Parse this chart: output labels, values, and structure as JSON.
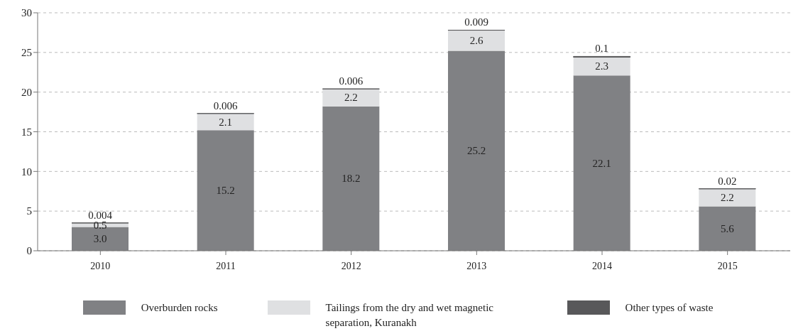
{
  "chart_data": {
    "type": "bar",
    "stacked": true,
    "categories": [
      "2010",
      "2011",
      "2012",
      "2013",
      "2014",
      "2015"
    ],
    "series": [
      {
        "name": "Overburden rocks",
        "color": "#808184",
        "values": [
          3.0,
          15.2,
          18.2,
          25.2,
          22.1,
          5.6
        ],
        "value_labels": [
          "3.0",
          "15.2",
          "18.2",
          "25.2",
          "22.1",
          "5.6"
        ]
      },
      {
        "name": "Tailings from the dry and wet magnetic separation, Kuranakh",
        "color": "#dfe0e2",
        "values": [
          0.5,
          2.1,
          2.2,
          2.6,
          2.3,
          2.2
        ],
        "value_labels": [
          "0.5",
          "2.1",
          "2.2",
          "2.6",
          "2.3",
          "2.2"
        ]
      },
      {
        "name": "Other types of waste",
        "color": "#58585a",
        "values": [
          0.004,
          0.006,
          0.006,
          0.009,
          0.1,
          0.02
        ],
        "value_labels": [
          "0.004",
          "0.006",
          "0.006",
          "0.009",
          "0.1",
          "0.02"
        ]
      }
    ],
    "ylim": [
      0,
      30
    ],
    "yticks": [
      0,
      5,
      10,
      15,
      20,
      25,
      30
    ],
    "grid": "y",
    "legend": "bottom"
  }
}
